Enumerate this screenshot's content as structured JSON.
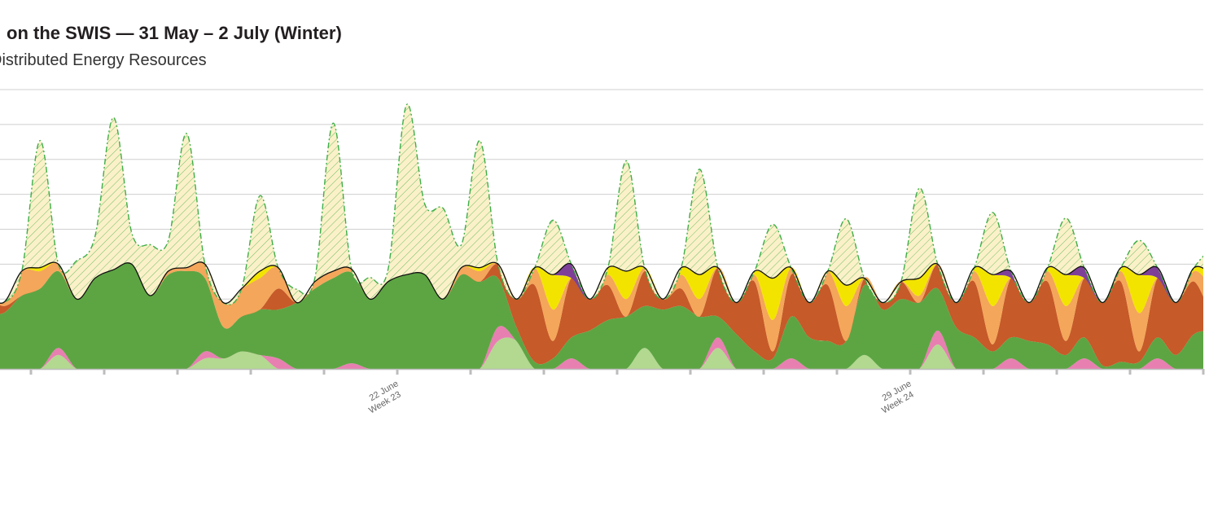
{
  "chart_data": {
    "type": "area",
    "stacked": true,
    "title": "on the SWIS — 31 May – 2 July (Winter)",
    "subtitle": "Distributed Energy Resources",
    "categories": [
      null,
      null,
      null,
      null,
      null,
      null,
      null,
      null,
      null,
      null,
      null,
      null,
      null,
      null,
      null,
      null,
      null,
      null,
      null,
      null,
      null,
      null,
      null,
      "22 June",
      null,
      null,
      null,
      null,
      null,
      null,
      null,
      null,
      null,
      null,
      null,
      null,
      null,
      null,
      null,
      null,
      null,
      null,
      null,
      null,
      null,
      null,
      null,
      null,
      null,
      null,
      null,
      "29 June",
      null,
      null,
      null,
      null,
      null,
      null,
      null,
      null,
      null,
      null,
      null,
      null,
      null,
      null,
      null,
      null
    ],
    "weeks": [
      null,
      null,
      null,
      null,
      null,
      null,
      null,
      null,
      null,
      null,
      null,
      null,
      null,
      null,
      null,
      null,
      null,
      null,
      null,
      null,
      null,
      null,
      null,
      "Week 23",
      null,
      null,
      null,
      null,
      null,
      null,
      null,
      null,
      null,
      null,
      null,
      null,
      null,
      null,
      null,
      null,
      null,
      null,
      null,
      null,
      null,
      null,
      null,
      null,
      null,
      null,
      null,
      "Week 24",
      null,
      null,
      null,
      null,
      null,
      null,
      null,
      null,
      null,
      null,
      null,
      null,
      null,
      null,
      null,
      null
    ],
    "ylim": [
      0,
      4000
    ],
    "yticks": [
      0,
      500,
      1000,
      1500,
      2000,
      2500,
      3000,
      3500,
      4000
    ],
    "grid": true,
    "line_color": "#111111",
    "series": [
      {
        "color": "#b2d98f",
        "values": [
          0,
          0,
          0,
          0,
          200,
          0,
          0,
          0,
          0,
          0,
          0,
          0,
          150,
          150,
          250,
          200,
          0,
          0,
          0,
          0,
          0,
          0,
          0,
          0,
          0,
          0,
          0,
          0,
          400,
          400,
          0,
          0,
          0,
          0,
          0,
          0,
          300,
          0,
          0,
          0,
          300,
          0,
          0,
          0,
          0,
          0,
          0,
          0,
          200,
          0,
          0,
          0,
          350,
          0,
          0,
          0,
          0,
          0,
          0,
          0,
          0,
          0,
          0,
          0,
          0,
          0,
          0,
          0
        ]
      },
      {
        "color": "#e87fb1",
        "values": [
          0,
          0,
          0,
          0,
          100,
          0,
          0,
          0,
          0,
          0,
          0,
          0,
          100,
          0,
          0,
          0,
          150,
          0,
          0,
          0,
          80,
          0,
          0,
          0,
          0,
          0,
          0,
          0,
          200,
          0,
          0,
          0,
          150,
          0,
          0,
          0,
          0,
          0,
          0,
          0,
          150,
          0,
          0,
          0,
          150,
          0,
          0,
          0,
          0,
          0,
          0,
          0,
          200,
          0,
          0,
          0,
          150,
          0,
          0,
          0,
          150,
          0,
          0,
          0,
          150,
          0,
          0,
          0
        ]
      },
      {
        "color": "#5da543",
        "values": [
          800,
          800,
          1050,
          1150,
          1100,
          1000,
          1300,
          1420,
          1500,
          1050,
          1350,
          1400,
          1050,
          450,
          500,
          650,
          700,
          950,
          1150,
          1300,
          1300,
          1000,
          1250,
          1350,
          1350,
          1000,
          1350,
          1250,
          700,
          200,
          100,
          150,
          300,
          550,
          700,
          750,
          600,
          850,
          900,
          750,
          300,
          500,
          250,
          150,
          600,
          450,
          400,
          400,
          1000,
          850,
          1000,
          950,
          600,
          600,
          450,
          250,
          300,
          400,
          350,
          200,
          300,
          50,
          100,
          100,
          300,
          200,
          500,
          550
        ]
      },
      {
        "color": "#c65a28",
        "values": [
          250,
          100,
          0,
          0,
          0,
          0,
          0,
          0,
          0,
          0,
          0,
          0,
          0,
          0,
          0,
          0,
          300,
          0,
          0,
          0,
          0,
          0,
          0,
          0,
          0,
          0,
          0,
          0,
          200,
          400,
          1100,
          250,
          850,
          450,
          500,
          0,
          500,
          150,
          250,
          0,
          700,
          450,
          1000,
          100,
          600,
          500,
          800,
          0,
          100,
          100,
          250,
          0,
          350,
          350,
          800,
          100,
          850,
          550,
          900,
          200,
          850,
          900,
          1150,
          150,
          850,
          750,
          750,
          150
        ]
      },
      {
        "color": "#f4a65a",
        "values": [
          50,
          50,
          350,
          250,
          100,
          0,
          0,
          0,
          0,
          0,
          50,
          50,
          200,
          350,
          400,
          450,
          300,
          0,
          100,
          100,
          50,
          0,
          0,
          0,
          0,
          0,
          100,
          150,
          0,
          0,
          250,
          450,
          0,
          0,
          150,
          250,
          50,
          0,
          200,
          250,
          0,
          0,
          100,
          450,
          100,
          0,
          200,
          500,
          0,
          0,
          0,
          100,
          0,
          0,
          150,
          550,
          0,
          0,
          150,
          500,
          0,
          0,
          150,
          550,
          0,
          0,
          150,
          450
        ]
      },
      {
        "color": "#f3e400",
        "values": [
          0,
          0,
          0,
          50,
          0,
          0,
          0,
          0,
          0,
          0,
          0,
          0,
          0,
          0,
          0,
          100,
          0,
          0,
          0,
          0,
          0,
          0,
          0,
          0,
          0,
          0,
          0,
          50,
          0,
          0,
          0,
          500,
          0,
          0,
          100,
          400,
          0,
          0,
          100,
          350,
          0,
          0,
          50,
          600,
          0,
          0,
          0,
          300,
          0,
          0,
          0,
          250,
          0,
          0,
          50,
          450,
          0,
          0,
          50,
          450,
          0,
          0,
          50,
          550,
          0,
          0,
          50,
          200
        ]
      },
      {
        "color": "#7e3f98",
        "values": [
          0,
          0,
          0,
          0,
          0,
          0,
          0,
          0,
          0,
          0,
          0,
          0,
          0,
          0,
          0,
          0,
          0,
          0,
          0,
          0,
          0,
          0,
          0,
          0,
          0,
          0,
          0,
          0,
          0,
          0,
          0,
          0,
          200,
          0,
          0,
          0,
          0,
          0,
          0,
          0,
          0,
          0,
          0,
          0,
          0,
          0,
          0,
          0,
          0,
          0,
          0,
          0,
          0,
          0,
          0,
          0,
          100,
          0,
          0,
          0,
          150,
          0,
          0,
          0,
          150,
          0,
          0,
          0
        ]
      }
    ],
    "overlay": {
      "color": "#3fae49",
      "fill": "#fbf1c8",
      "values": [
        0,
        0,
        0,
        1820,
        0,
        550,
        600,
        2180,
        450,
        730,
        440,
        1920,
        0,
        0,
        0,
        1080,
        0,
        190,
        50,
        2120,
        0,
        310,
        180,
        2430,
        1010,
        1300,
        330,
        1820,
        0,
        0,
        0,
        780,
        0,
        0,
        0,
        1580,
        0,
        0,
        0,
        1510,
        0,
        0,
        0,
        770,
        0,
        0,
        0,
        950,
        0,
        0,
        0,
        1290,
        0,
        0,
        0,
        890,
        0,
        0,
        0,
        810,
        0,
        0,
        0,
        490,
        0,
        0,
        0,
        400
      ]
    }
  }
}
